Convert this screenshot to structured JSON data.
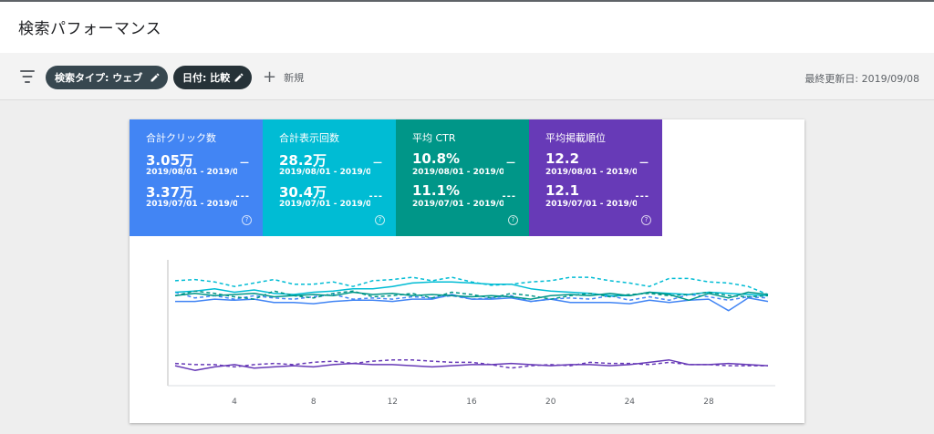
{
  "header": {
    "title": "検索パフォーマンス"
  },
  "filters": {
    "chip_search_type": "検索タイプ: ウェブ",
    "chip_date": "日付: 比較",
    "new_label": "新規",
    "last_updated": "最終更新日: 2019/09/08"
  },
  "metrics": [
    {
      "label": "合計クリック数",
      "color": "#4285f4",
      "current": {
        "value": "3.05万",
        "range": "2019/08/01 - 2019/0...",
        "mark": "—"
      },
      "previous": {
        "value": "3.37万",
        "range": "2019/07/01 - 2019/0...",
        "mark": "---"
      }
    },
    {
      "label": "合計表示回数",
      "color": "#00bcd4",
      "current": {
        "value": "28.2万",
        "range": "2019/08/01 - 2019/0...",
        "mark": "—"
      },
      "previous": {
        "value": "30.4万",
        "range": "2019/07/01 - 2019/0...",
        "mark": "---"
      }
    },
    {
      "label": "平均 CTR",
      "color": "#009688",
      "current": {
        "value": "10.8%",
        "range": "2019/08/01 - 2019/0...",
        "mark": "—"
      },
      "previous": {
        "value": "11.1%",
        "range": "2019/07/01 - 2019/0...",
        "mark": "---"
      }
    },
    {
      "label": "平均掲載順位",
      "color": "#673ab7",
      "current": {
        "value": "12.2",
        "range": "2019/08/01 - 2019/0...",
        "mark": "—"
      },
      "previous": {
        "value": "12.1",
        "range": "2019/07/01 - 2019/0...",
        "mark": "---"
      }
    }
  ],
  "chart_data": {
    "type": "line",
    "x": [
      1,
      2,
      3,
      4,
      5,
      6,
      7,
      8,
      9,
      10,
      11,
      12,
      13,
      14,
      15,
      16,
      17,
      18,
      19,
      20,
      21,
      22,
      23,
      24,
      25,
      26,
      27,
      28,
      29,
      30,
      31
    ],
    "xticks": [
      4,
      8,
      12,
      16,
      20,
      24,
      28
    ],
    "xlim": [
      1,
      31
    ],
    "ylim": [
      0,
      100
    ],
    "grid": false,
    "series": [
      {
        "color": "#4285f4",
        "dash": false,
        "values": [
          67,
          67,
          69,
          68,
          69,
          66,
          66,
          65,
          67,
          68,
          68,
          67,
          69,
          69,
          73,
          69,
          69,
          70,
          67,
          69,
          66,
          66,
          66,
          65,
          68,
          66,
          68,
          69,
          59,
          70,
          67
        ]
      },
      {
        "color": "#4285f4",
        "dash": true,
        "values": [
          75,
          70,
          72,
          69,
          72,
          70,
          69,
          71,
          73,
          69,
          70,
          69,
          71,
          70,
          72,
          69,
          70,
          72,
          67,
          69,
          70,
          69,
          72,
          68,
          71,
          68,
          73,
          71,
          68,
          71,
          70
        ]
      },
      {
        "color": "#00bcd4",
        "dash": false,
        "values": [
          75,
          76,
          78,
          75,
          77,
          74,
          73,
          75,
          76,
          78,
          78,
          80,
          83,
          84,
          84,
          83,
          82,
          82,
          78,
          76,
          75,
          74,
          72,
          72,
          75,
          74,
          73,
          75,
          74,
          73,
          72
        ]
      },
      {
        "color": "#00bcd4",
        "dash": true,
        "values": [
          85,
          86,
          84,
          80,
          83,
          86,
          82,
          82,
          84,
          80,
          85,
          86,
          88,
          85,
          88,
          84,
          81,
          82,
          84,
          85,
          88,
          88,
          85,
          83,
          80,
          87,
          87,
          84,
          83,
          80,
          73
        ]
      },
      {
        "color": "#009688",
        "dash": false,
        "values": [
          72,
          74,
          72,
          73,
          74,
          71,
          72,
          73,
          72,
          75,
          73,
          74,
          72,
          73,
          72,
          71,
          72,
          71,
          69,
          72,
          73,
          72,
          74,
          72,
          75,
          73,
          68,
          74,
          70,
          75,
          73
        ]
      },
      {
        "color": "#009688",
        "dash": true,
        "values": [
          72,
          76,
          74,
          71,
          69,
          76,
          72,
          70,
          74,
          76,
          71,
          72,
          74,
          70,
          75,
          73,
          70,
          74,
          72,
          69,
          72,
          74,
          71,
          73,
          74,
          72,
          73,
          75,
          72,
          71,
          72
        ]
      },
      {
        "color": "#673ab7",
        "dash": false,
        "values": [
          11,
          7,
          10,
          12,
          9,
          10,
          11,
          10,
          12,
          13,
          12,
          12,
          11,
          10,
          11,
          12,
          12,
          13,
          12,
          11,
          12,
          12,
          11,
          12,
          14,
          16,
          12,
          12,
          13,
          12,
          11
        ]
      },
      {
        "color": "#673ab7",
        "dash": true,
        "values": [
          13,
          12,
          12,
          10,
          12,
          13,
          12,
          14,
          15,
          13,
          15,
          16,
          16,
          15,
          14,
          14,
          12,
          9,
          11,
          12,
          11,
          14,
          13,
          13,
          12,
          14,
          12,
          12,
          11,
          11,
          11
        ]
      }
    ]
  }
}
